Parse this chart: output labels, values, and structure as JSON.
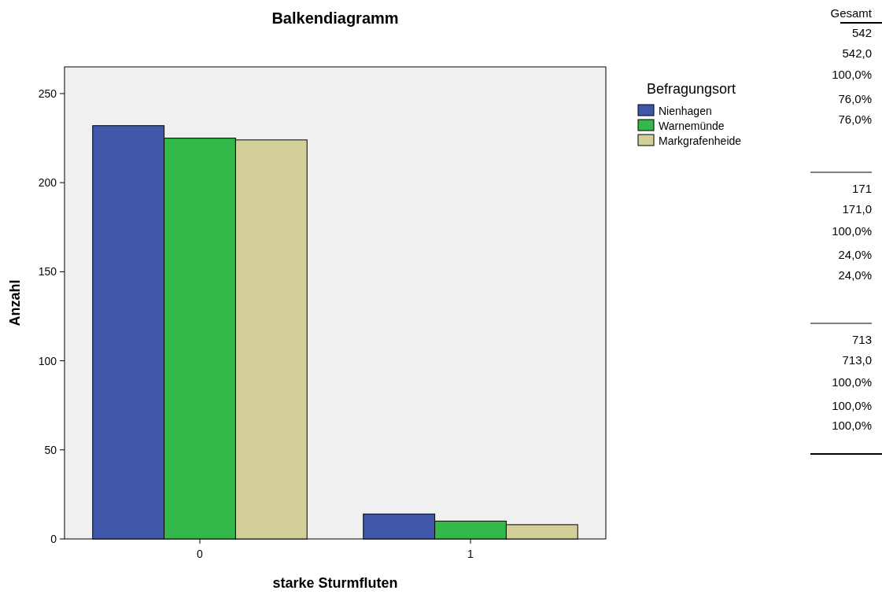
{
  "chart_data": {
    "type": "bar",
    "title": "Balkendiagramm",
    "xlabel": "starke Sturmfluten",
    "ylabel": "Anzahl",
    "legend_title": "Befragungsort",
    "legend": "right",
    "grid": false,
    "categories": [
      "0",
      "1"
    ],
    "series": [
      {
        "name": "Nienhagen",
        "color": "#3f57a8",
        "values": [
          232,
          14
        ]
      },
      {
        "name": "Warnemünde",
        "color": "#33b84a",
        "values": [
          225,
          10
        ]
      },
      {
        "name": "Markgrafenheide",
        "color": "#d3cf98",
        "values": [
          224,
          8
        ]
      }
    ],
    "ylim": [
      0,
      265
    ],
    "yticks": [
      0,
      50,
      100,
      150,
      200,
      250
    ],
    "annotations": [
      "Gesamt",
      "542",
      "542,0",
      "100,0%",
      "76,0%",
      "76,0%",
      "171",
      "171,0",
      "100,0%",
      "24,0%",
      "24,0%",
      "713",
      "713,0",
      "100,0%",
      "100,0%",
      "100,0%"
    ]
  }
}
